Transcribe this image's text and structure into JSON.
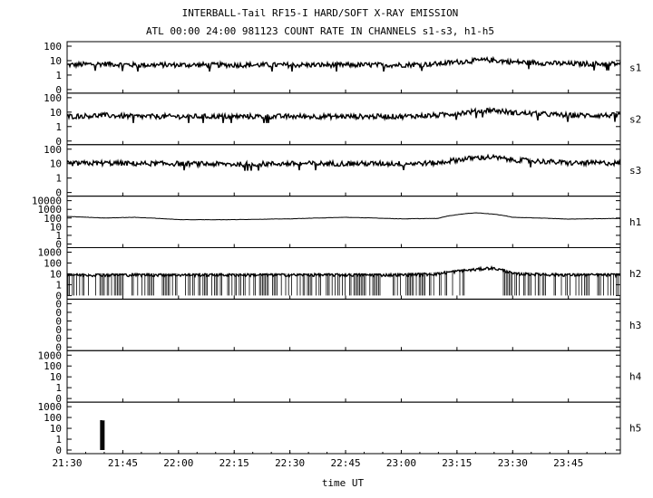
{
  "chart_data": {
    "type": "line",
    "title": "INTERBALL-Tail RF15-I HARD/SOFT X-RAY EMISSION",
    "subtitle": "ATL 00:00 24:00 981123  COUNT RATE IN CHANNELS s1-s3, h1-h5",
    "xlabel": "time UT",
    "x_ticks": [
      "21:30",
      "21:45",
      "22:00",
      "22:15",
      "22:30",
      "22:45",
      "23:00",
      "23:15",
      "23:30",
      "23:45"
    ],
    "xlim": [
      "21:30",
      "23:59"
    ],
    "x": [
      "21:30",
      "21:40",
      "21:48",
      "22:00",
      "22:15",
      "22:30",
      "22:45",
      "23:00",
      "23:10",
      "23:20",
      "23:24",
      "23:30",
      "23:45",
      "23:59"
    ],
    "grid": false,
    "series": [
      {
        "name": "s1",
        "ticks": [
          "100",
          "10",
          "1",
          "0"
        ],
        "scale": "log",
        "values": [
          5,
          6,
          5,
          5,
          5,
          5,
          5,
          5,
          6,
          10,
          11,
          8,
          6,
          6
        ]
      },
      {
        "name": "s2",
        "ticks": [
          "100",
          "10",
          "1",
          "0"
        ],
        "scale": "log",
        "values": [
          5,
          6,
          5,
          5,
          5,
          5,
          5,
          5,
          6,
          11,
          14,
          9,
          6,
          6
        ]
      },
      {
        "name": "s3",
        "ticks": [
          "100",
          "10",
          "1",
          "0"
        ],
        "scale": "log",
        "values": [
          10,
          11,
          10,
          10,
          9,
          10,
          10,
          10,
          11,
          25,
          28,
          18,
          11,
          11
        ]
      },
      {
        "name": "h1",
        "ticks": [
          "10000",
          "1000",
          "100",
          "10",
          "1",
          "0"
        ],
        "scale": "log",
        "values": [
          150,
          100,
          120,
          65,
          65,
          80,
          120,
          80,
          90,
          400,
          300,
          120,
          75,
          90
        ]
      },
      {
        "name": "h2",
        "ticks": [
          "1000",
          "100",
          "10",
          "1",
          "0"
        ],
        "scale": "log",
        "values": [
          8,
          8,
          8,
          8,
          8,
          8,
          8,
          8,
          10,
          25,
          35,
          10,
          8,
          8
        ]
      },
      {
        "name": "h3",
        "ticks": [
          "0",
          "0",
          "0",
          "0",
          "0",
          "0"
        ],
        "scale": "log",
        "values": [
          0,
          0,
          0,
          0,
          0,
          0,
          0,
          0,
          0,
          0,
          0,
          0,
          0,
          0
        ]
      },
      {
        "name": "h4",
        "ticks": [
          "1000",
          "100",
          "10",
          "1",
          "0"
        ],
        "scale": "log",
        "values": [
          0,
          0,
          0,
          0,
          0,
          0,
          0,
          0,
          0,
          0,
          0,
          0,
          0,
          0
        ]
      },
      {
        "name": "h5",
        "ticks": [
          "1000",
          "100",
          "10",
          "1",
          "0"
        ],
        "scale": "log",
        "values": [
          0,
          60,
          0,
          0,
          0,
          0,
          0,
          0,
          0,
          0,
          0,
          0,
          0,
          0
        ]
      }
    ]
  }
}
